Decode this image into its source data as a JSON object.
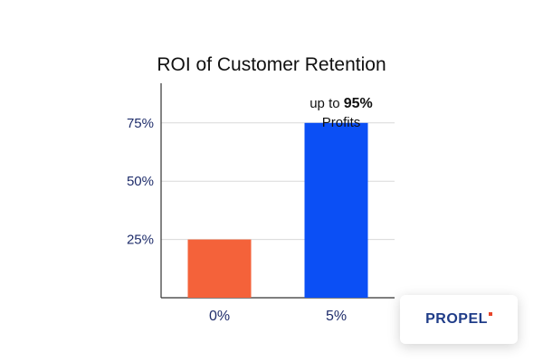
{
  "chart_data": {
    "type": "bar",
    "title": "ROI of Customer Retention",
    "categories": [
      "0%",
      "5%"
    ],
    "values": [
      25,
      75
    ],
    "yticks": [
      "25%",
      "50%",
      "75%"
    ],
    "ytick_values": [
      25,
      50,
      75
    ],
    "ylim": [
      0,
      92
    ],
    "grid": true,
    "bar_colors": [
      "#f4623a",
      "#0b4ff5"
    ],
    "annotation": {
      "prefix": "up to ",
      "strong": "95%",
      "line2": "Profits"
    }
  },
  "logo": {
    "text": "PROPEL",
    "accent_color": "#e8452a",
    "text_color": "#1f3c88"
  }
}
